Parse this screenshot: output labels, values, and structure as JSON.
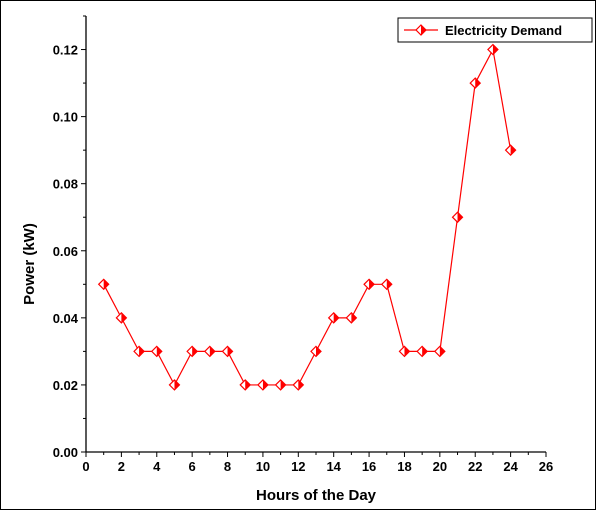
{
  "chart_data": {
    "type": "line",
    "title": "",
    "xlabel": "Hours of the Day",
    "ylabel": "Power (kW)",
    "xlim": [
      0,
      26
    ],
    "ylim": [
      0,
      0.13
    ],
    "x_ticks": [
      0,
      2,
      4,
      6,
      8,
      10,
      12,
      14,
      16,
      18,
      20,
      22,
      24,
      26
    ],
    "y_ticks": [
      0.0,
      0.02,
      0.04,
      0.06,
      0.08,
      0.1,
      0.12
    ],
    "x_tick_labels": [
      "0",
      "2",
      "4",
      "6",
      "8",
      "10",
      "12",
      "14",
      "16",
      "18",
      "20",
      "22",
      "24",
      "26"
    ],
    "y_tick_labels": [
      "0.00",
      "0.02",
      "0.04",
      "0.06",
      "0.08",
      "0.10",
      "0.12"
    ],
    "grid": false,
    "legend_position": "top-right",
    "series": [
      {
        "name": "Electricity Demand",
        "color": "#ff0000",
        "marker": "diamond",
        "x": [
          1,
          2,
          3,
          4,
          5,
          6,
          7,
          8,
          9,
          10,
          11,
          12,
          13,
          14,
          15,
          16,
          17,
          18,
          19,
          20,
          21,
          22,
          23,
          24
        ],
        "values": [
          0.05,
          0.04,
          0.03,
          0.03,
          0.02,
          0.03,
          0.03,
          0.03,
          0.02,
          0.02,
          0.02,
          0.02,
          0.03,
          0.04,
          0.04,
          0.05,
          0.05,
          0.03,
          0.03,
          0.03,
          0.07,
          0.11,
          0.12,
          0.09
        ]
      }
    ]
  }
}
